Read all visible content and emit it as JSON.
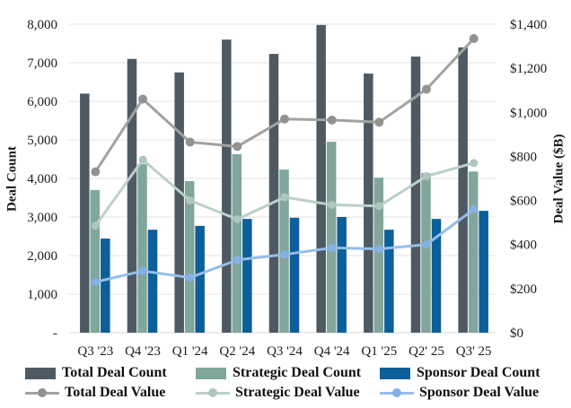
{
  "chart_data": {
    "type": "combo-bar-line",
    "categories": [
      "Q3 '23",
      "Q4 '23",
      "Q1 '24",
      "Q2 '24",
      "Q3 '24",
      "Q4 '24",
      "Q1 '25",
      "Q2' 25",
      "Q3' 25"
    ],
    "bar_series": [
      {
        "name": "Total Deal Count",
        "axis": "left",
        "color": "#4e5a63",
        "values": [
          6200,
          7100,
          6750,
          7600,
          7230,
          7980,
          6720,
          7160,
          7400
        ]
      },
      {
        "name": "Strategic Deal Count",
        "axis": "left",
        "color": "#81a69b",
        "values": [
          3700,
          4370,
          3930,
          4630,
          4230,
          4950,
          4020,
          4140,
          4180
        ]
      },
      {
        "name": "Sponsor Deal Count",
        "axis": "left",
        "color": "#0c5f98",
        "values": [
          2440,
          2670,
          2770,
          2950,
          2980,
          3000,
          2670,
          2950,
          3160
        ]
      }
    ],
    "line_series": [
      {
        "name": "Total Deal Value",
        "axis": "right",
        "color": "#a2a2a0",
        "marker_color": "#929290",
        "marker_r": 5,
        "values": [
          730,
          1060,
          865,
          845,
          970,
          965,
          955,
          1105,
          1335
        ]
      },
      {
        "name": "Strategic Deal Value",
        "axis": "right",
        "color": "#bcd0c9",
        "marker_color": "#aec6be",
        "marker_r": 4.5,
        "values": [
          485,
          785,
          600,
          515,
          615,
          580,
          575,
          710,
          770
        ]
      },
      {
        "name": "Sponsor Deal Value",
        "axis": "right",
        "color": "#96bdea",
        "marker_color": "#83b1e6",
        "marker_r": 4.5,
        "values": [
          230,
          280,
          250,
          330,
          355,
          385,
          380,
          400,
          560
        ]
      }
    ],
    "left_axis": {
      "title": "Deal Count",
      "min": 0,
      "max": 8000,
      "tick_step": 1000,
      "tick_labels": [
        "-",
        "1,000",
        "2,000",
        "3,000",
        "4,000",
        "5,000",
        "6,000",
        "7,000",
        "8,000"
      ]
    },
    "right_axis": {
      "title": "Deal Value ($B)",
      "min": 0,
      "max": 1400,
      "tick_step": 200,
      "tick_labels": [
        "$0",
        "$200",
        "$400",
        "$600",
        "$800",
        "$1,000",
        "$1,200",
        "$1,400"
      ]
    },
    "grid": true,
    "legend_position": "bottom"
  },
  "legend": {
    "items": [
      {
        "label": "Total Deal Count",
        "type": "bar",
        "color": "#4e5a63"
      },
      {
        "label": "Strategic Deal Count",
        "type": "bar",
        "color": "#81a69b"
      },
      {
        "label": "Sponsor Deal Count",
        "type": "bar",
        "color": "#0c5f98"
      },
      {
        "label": "Total Deal Value",
        "type": "line",
        "color": "#a2a2a0",
        "dot_color": "#929290"
      },
      {
        "label": "Strategic Deal Value",
        "type": "line",
        "color": "#bcd0c9",
        "dot_color": "#aec6be"
      },
      {
        "label": "Sponsor Deal Value",
        "type": "line",
        "color": "#96bdea",
        "dot_color": "#83b1e6"
      }
    ]
  },
  "colors": {
    "background": "#ffffff",
    "grid": "#e3e3e3",
    "baseline": "#d8d8d8",
    "text": "#1c1c1c"
  }
}
